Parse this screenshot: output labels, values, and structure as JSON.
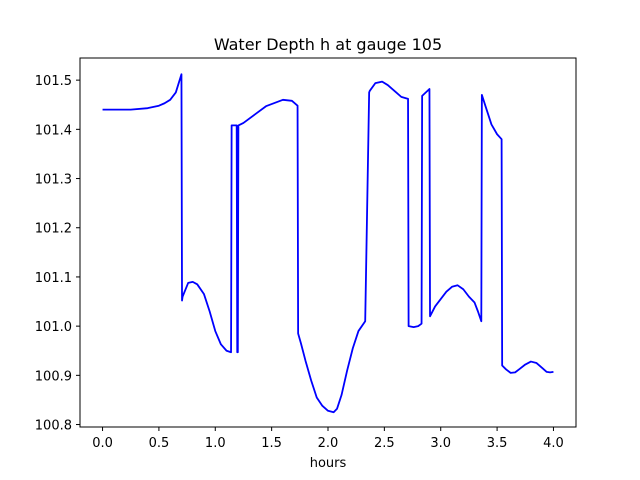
{
  "chart_data": {
    "type": "line",
    "title": "Water Depth h at gauge 105",
    "xlabel": "hours",
    "ylabel": "",
    "xlim": [
      -0.2,
      4.2
    ],
    "ylim": [
      100.795,
      101.545
    ],
    "xticks": [
      0.0,
      0.5,
      1.0,
      1.5,
      2.0,
      2.5,
      3.0,
      3.5,
      4.0
    ],
    "xtick_labels": [
      "0.0",
      "0.5",
      "1.0",
      "1.5",
      "2.0",
      "2.5",
      "3.0",
      "3.5",
      "4.0"
    ],
    "yticks": [
      100.8,
      100.9,
      101.0,
      101.1,
      101.2,
      101.3,
      101.4,
      101.5
    ],
    "ytick_labels": [
      "100.8",
      "100.9",
      "101.0",
      "101.1",
      "101.2",
      "101.3",
      "101.4",
      "101.5"
    ],
    "grid": false,
    "series": [
      {
        "color": "#0000ff",
        "x": [
          0.0,
          0.25,
          0.4,
          0.5,
          0.55,
          0.6,
          0.65,
          0.7,
          0.705,
          0.71,
          0.76,
          0.8,
          0.84,
          0.9,
          0.95,
          1.0,
          1.05,
          1.1,
          1.14,
          1.145,
          1.19,
          1.195,
          1.2,
          1.205,
          1.25,
          1.35,
          1.45,
          1.6,
          1.68,
          1.73,
          1.735,
          1.76,
          1.8,
          1.85,
          1.9,
          1.95,
          2.0,
          2.05,
          2.08,
          2.12,
          2.17,
          2.22,
          2.27,
          2.33,
          2.365,
          2.37,
          2.42,
          2.48,
          2.53,
          2.6,
          2.65,
          2.71,
          2.715,
          2.76,
          2.8,
          2.83,
          2.835,
          2.9,
          2.905,
          2.95,
          3.0,
          3.05,
          3.1,
          3.15,
          3.2,
          3.25,
          3.3,
          3.33,
          3.36,
          3.365,
          3.4,
          3.45,
          3.5,
          3.54,
          3.545,
          3.58,
          3.62,
          3.66,
          3.7,
          3.75,
          3.8,
          3.85,
          3.9,
          3.94,
          3.97,
          4.0
        ],
        "y": [
          101.44,
          101.44,
          101.443,
          101.448,
          101.453,
          101.46,
          101.475,
          101.512,
          101.052,
          101.06,
          101.088,
          101.09,
          101.085,
          101.065,
          101.03,
          100.99,
          100.963,
          100.95,
          100.947,
          101.408,
          101.408,
          100.947,
          100.947,
          101.408,
          101.413,
          101.43,
          101.447,
          101.46,
          101.458,
          101.448,
          100.985,
          100.965,
          100.93,
          100.89,
          100.855,
          100.838,
          100.828,
          100.825,
          100.832,
          100.86,
          100.91,
          100.955,
          100.99,
          101.01,
          101.475,
          101.478,
          101.494,
          101.497,
          101.49,
          101.476,
          101.466,
          101.462,
          101.0,
          100.998,
          101.0,
          101.005,
          101.468,
          101.482,
          101.02,
          101.04,
          101.055,
          101.07,
          101.08,
          101.083,
          101.075,
          101.06,
          101.048,
          101.03,
          101.01,
          101.47,
          101.445,
          101.41,
          101.39,
          101.38,
          100.92,
          100.912,
          100.905,
          100.906,
          100.913,
          100.922,
          100.928,
          100.925,
          100.915,
          100.907,
          100.906,
          100.907
        ]
      }
    ]
  }
}
